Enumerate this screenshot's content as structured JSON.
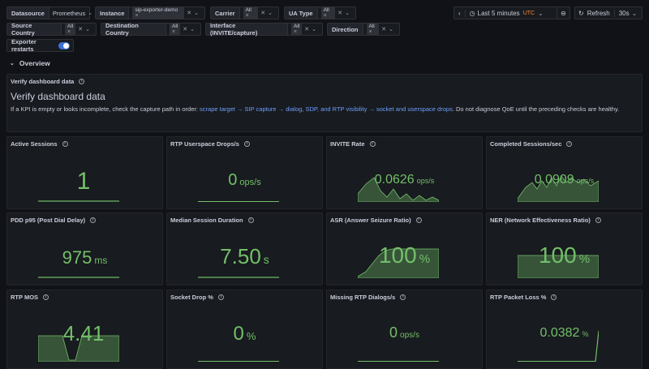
{
  "vars": {
    "datasource_label": "Datasource",
    "datasource_value": "Prometheus",
    "instance_label": "Instance",
    "instance_value": "sip-exporter-demo",
    "carrier_label": "Carrier",
    "carrier_value": "All",
    "ua_label": "UA Type",
    "ua_value": "All",
    "source_country_label": "Source Country",
    "source_country_value": "All",
    "dest_country_label": "Destination Country",
    "dest_country_value": "All",
    "interface_label": "Interface (INVITE/capture)",
    "interface_value": "All",
    "direction_label": "Direction",
    "direction_value": "All",
    "restarts_label": "Exporter restarts"
  },
  "time": {
    "range_label": "Last 5 minutes",
    "tz": "UTC",
    "refresh_label": "Refresh",
    "interval": "30s"
  },
  "row": {
    "title": "Overview"
  },
  "verify": {
    "panel_title": "Verify dashboard data",
    "heading": "Verify dashboard data",
    "intro": "If a KPI is empty or looks incomplete, check the capture path in order:",
    "link1": "scrape target",
    "arrow1": "→",
    "link2": "SIP capture",
    "arrow2": "→",
    "link3": "dialog, SDP, and RTP visibility",
    "arrow3": "→",
    "link4": "socket and userspace drops",
    "outro": ". Do not diagnose QoE until the preceding checks are healthy."
  },
  "panels": [
    {
      "title": "Active Sessions",
      "value": "1",
      "unit": ""
    },
    {
      "title": "RTP Userspace Drops/s",
      "value": "0",
      "unit": "ops/s"
    },
    {
      "title": "INVITE Rate",
      "value": "0.0626",
      "unit": "ops/s"
    },
    {
      "title": "Completed Sessions/sec",
      "value": "0.0909",
      "unit": "ops/s"
    },
    {
      "title": "PDD p95 (Post Dial Delay)",
      "value": "975",
      "unit": "ms"
    },
    {
      "title": "Median Session Duration",
      "value": "7.50",
      "unit": "s"
    },
    {
      "title": "ASR (Answer Seizure Ratio)",
      "value": "100",
      "unit": "%"
    },
    {
      "title": "NER (Network Effectiveness Ratio)",
      "value": "100",
      "unit": "%"
    },
    {
      "title": "RTP MOS",
      "value": "4.41",
      "unit": ""
    },
    {
      "title": "Socket Drop %",
      "value": "0",
      "unit": "%"
    },
    {
      "title": "Missing RTP Dialogs/s",
      "value": "0",
      "unit": "ops/s"
    },
    {
      "title": "RTP Packet Loss %",
      "value": "0.0382",
      "unit": "%"
    }
  ],
  "colors": {
    "value_green": "#73bf69",
    "link_blue": "#6e9fff",
    "toggle_blue": "#3d71d9",
    "utc_orange": "#ff8833"
  }
}
